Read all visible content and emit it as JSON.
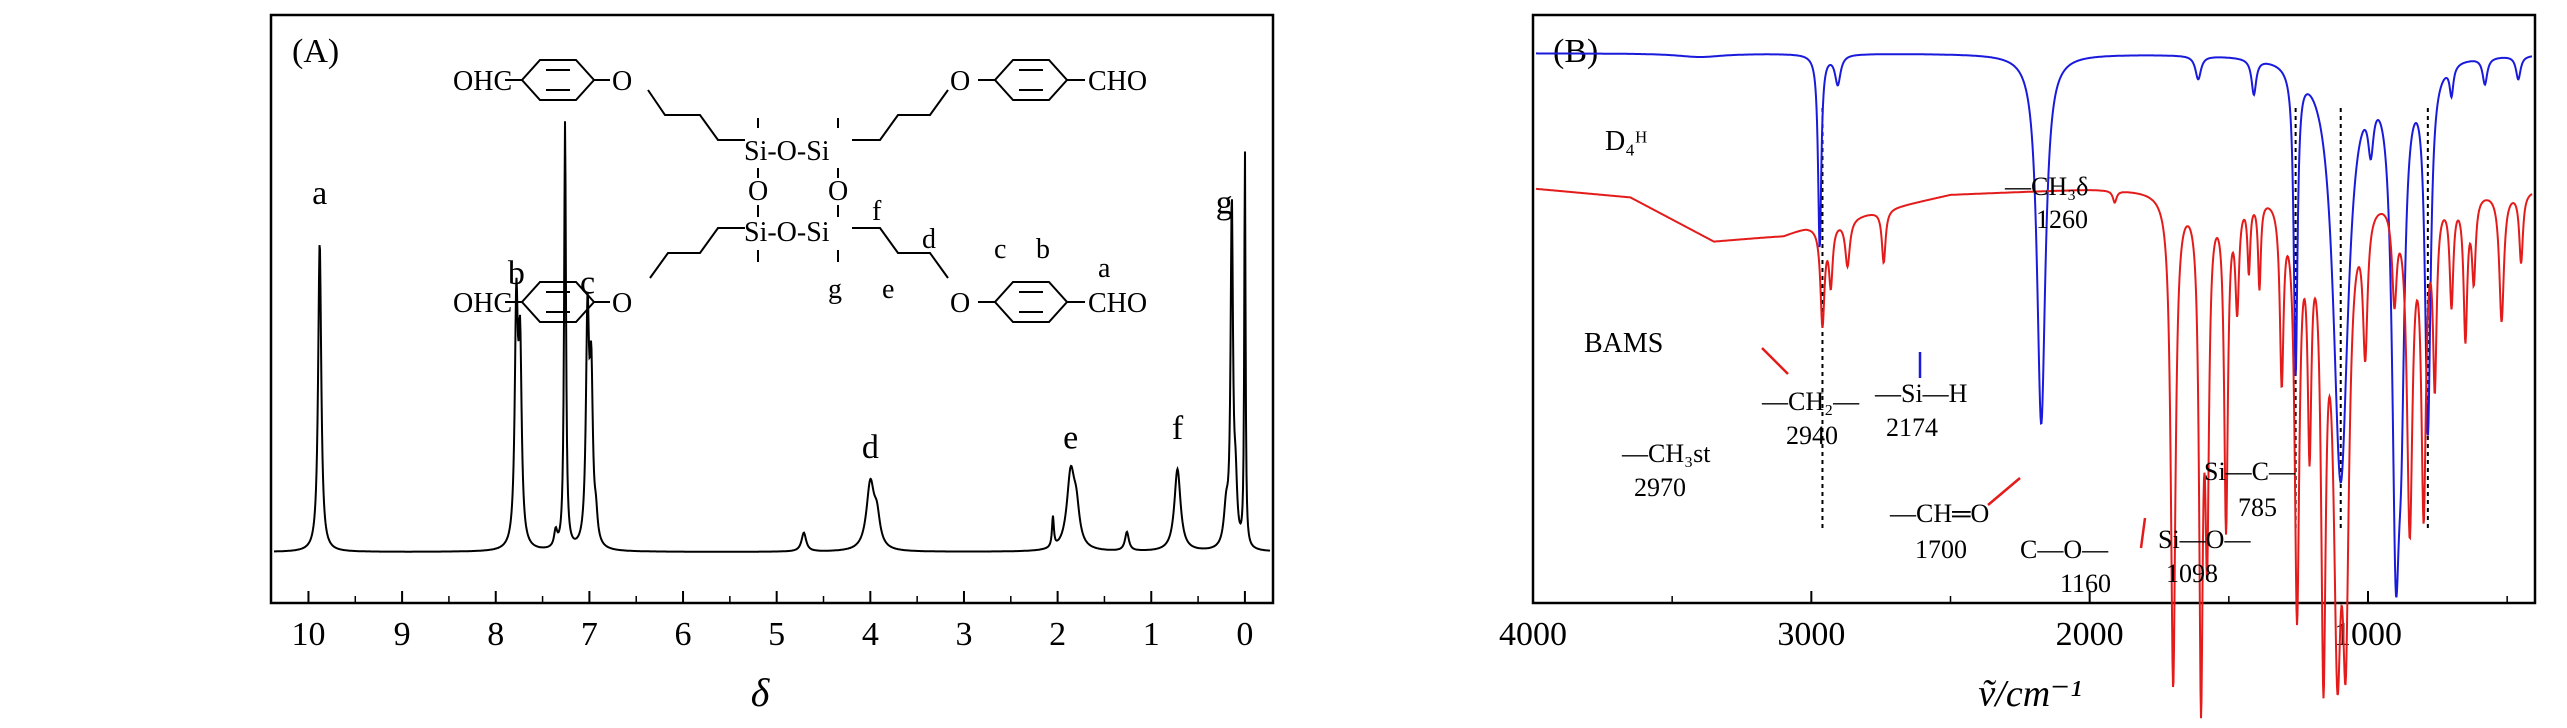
{
  "chart_data": [
    {
      "panel": "(A)",
      "type": "line",
      "title": "",
      "xlabel": "δ",
      "ylabel": "",
      "xlim": [
        10.4,
        -0.3
      ],
      "x_reversed": true,
      "x_ticks": [
        10,
        9,
        8,
        7,
        6,
        5,
        4,
        3,
        2,
        1,
        0
      ],
      "grid": false,
      "series": [
        {
          "color": "#000000",
          "peaks": [
            {
              "x": 9.88,
              "height": 0.66,
              "width": 0.02
            },
            {
              "x": 7.78,
              "height": 0.5,
              "width": 0.02
            },
            {
              "x": 7.74,
              "height": 0.4,
              "width": 0.02
            },
            {
              "x": 7.36,
              "height": 0.035,
              "width": 0.02
            },
            {
              "x": 7.26,
              "height": 0.91,
              "width": 0.012
            },
            {
              "x": 7.02,
              "height": 0.48,
              "width": 0.02
            },
            {
              "x": 6.98,
              "height": 0.34,
              "width": 0.02
            },
            {
              "x": 6.93,
              "height": 0.05,
              "width": 0.02
            },
            {
              "x": 4.71,
              "height": 0.04,
              "width": 0.03
            },
            {
              "x": 4.0,
              "height": 0.14,
              "width": 0.05
            },
            {
              "x": 3.93,
              "height": 0.06,
              "width": 0.04
            },
            {
              "x": 2.05,
              "height": 0.065,
              "width": 0.012
            },
            {
              "x": 1.86,
              "height": 0.16,
              "width": 0.05
            },
            {
              "x": 1.8,
              "height": 0.07,
              "width": 0.04
            },
            {
              "x": 1.26,
              "height": 0.04,
              "width": 0.025
            },
            {
              "x": 0.72,
              "height": 0.175,
              "width": 0.04
            },
            {
              "x": 0.2,
              "height": 0.08,
              "width": 0.03
            },
            {
              "x": 0.14,
              "height": 0.72,
              "width": 0.015
            },
            {
              "x": 0.1,
              "height": 0.12,
              "width": 0.02
            },
            {
              "x": 0.0,
              "height": 0.85,
              "width": 0.008
            }
          ]
        }
      ],
      "peak_labels": [
        {
          "text": "a",
          "x": 9.88,
          "y": 0.74
        },
        {
          "text": "b",
          "x": 7.78,
          "y": 0.57
        },
        {
          "text": "c",
          "x": 7.02,
          "y": 0.55
        },
        {
          "text": "d",
          "x": 4.0,
          "y": 0.2
        },
        {
          "text": "e",
          "x": 1.86,
          "y": 0.22
        },
        {
          "text": "f",
          "x": 0.72,
          "y": 0.24
        },
        {
          "text": "g",
          "x": 0.22,
          "y": 0.72
        }
      ],
      "structure_labels": {
        "cho_left": "OHC",
        "cho_right": "CHO",
        "o": "O",
        "si_o_si": "Si-O-Si",
        "o_vertical": "O",
        "a": "a",
        "b": "b",
        "c": "c",
        "d": "d",
        "e": "e",
        "f": "f",
        "g": "g"
      }
    },
    {
      "panel": "(B)",
      "type": "line",
      "title": "",
      "xlabel": "ṽ/cm⁻¹",
      "ylabel": "",
      "xlim": [
        4000,
        400
      ],
      "x_reversed": true,
      "x_ticks": [
        4000,
        3000,
        2000,
        1000
      ],
      "grid": false,
      "reference_lines": [
        2960,
        1260,
        1098,
        785
      ],
      "series": [
        {
          "name": "D₄ᴴ",
          "color": "#1a1adc",
          "baseline": 0.935,
          "slope": [],
          "bands": [
            {
              "x": 3400,
              "depth": 0.006,
              "width": 100
            },
            {
              "x": 2970,
              "depth": 0.33,
              "width": 7
            },
            {
              "x": 2905,
              "depth": 0.05,
              "width": 12
            },
            {
              "x": 2174,
              "depth": 0.63,
              "width": 18
            },
            {
              "x": 1610,
              "depth": 0.04,
              "width": 12
            },
            {
              "x": 1410,
              "depth": 0.06,
              "width": 10
            },
            {
              "x": 1260,
              "depth": 0.52,
              "width": 8
            },
            {
              "x": 1098,
              "depth": 0.72,
              "width": 32
            },
            {
              "x": 990,
              "depth": 0.09,
              "width": 12
            },
            {
              "x": 900,
              "depth": 0.76,
              "width": 16
            },
            {
              "x": 880,
              "depth": 0.4,
              "width": 14
            },
            {
              "x": 785,
              "depth": 0.62,
              "width": 12
            },
            {
              "x": 700,
              "depth": 0.05,
              "width": 8
            },
            {
              "x": 580,
              "depth": 0.045,
              "width": 10
            },
            {
              "x": 460,
              "depth": 0.04,
              "width": 10
            }
          ]
        },
        {
          "name": "BAMS",
          "color": "#e41b1b",
          "baseline": 0.705,
          "slope": [
            [
              4000,
              0
            ],
            [
              3650,
              -0.015
            ],
            [
              3350,
              -0.09
            ],
            [
              3100,
              -0.08
            ],
            [
              3020,
              -0.065
            ],
            [
              2500,
              -0.01
            ],
            [
              2000,
              0
            ],
            [
              400,
              0
            ]
          ],
          "bands": [
            {
              "x": 2960,
              "depth": 0.17,
              "width": 9
            },
            {
              "x": 2930,
              "depth": 0.1,
              "width": 8
            },
            {
              "x": 2870,
              "depth": 0.08,
              "width": 10
            },
            {
              "x": 2740,
              "depth": 0.09,
              "width": 8
            },
            {
              "x": 1910,
              "depth": 0.02,
              "width": 8
            },
            {
              "x": 1700,
              "depth": 0.84,
              "width": 10
            },
            {
              "x": 1600,
              "depth": 0.82,
              "width": 8
            },
            {
              "x": 1578,
              "depth": 0.55,
              "width": 8
            },
            {
              "x": 1510,
              "depth": 0.56,
              "width": 8
            },
            {
              "x": 1470,
              "depth": 0.18,
              "width": 8
            },
            {
              "x": 1428,
              "depth": 0.12,
              "width": 6
            },
            {
              "x": 1390,
              "depth": 0.15,
              "width": 6
            },
            {
              "x": 1310,
              "depth": 0.3,
              "width": 8
            },
            {
              "x": 1255,
              "depth": 0.7,
              "width": 10
            },
            {
              "x": 1210,
              "depth": 0.38,
              "width": 8
            },
            {
              "x": 1160,
              "depth": 0.76,
              "width": 10
            },
            {
              "x": 1110,
              "depth": 0.7,
              "width": 16
            },
            {
              "x": 1080,
              "depth": 0.66,
              "width": 14
            },
            {
              "x": 1010,
              "depth": 0.24,
              "width": 10
            },
            {
              "x": 905,
              "depth": 0.16,
              "width": 10
            },
            {
              "x": 850,
              "depth": 0.56,
              "width": 12
            },
            {
              "x": 800,
              "depth": 0.52,
              "width": 10
            },
            {
              "x": 760,
              "depth": 0.3,
              "width": 8
            },
            {
              "x": 700,
              "depth": 0.18,
              "width": 8
            },
            {
              "x": 650,
              "depth": 0.24,
              "width": 8
            },
            {
              "x": 620,
              "depth": 0.14,
              "width": 8
            },
            {
              "x": 520,
              "depth": 0.22,
              "width": 10
            },
            {
              "x": 450,
              "depth": 0.12,
              "width": 8
            }
          ]
        }
      ],
      "annotations": [
        {
          "text": "—CH₃δ",
          "sub": "1260"
        },
        {
          "text": "—CH₂—",
          "sub": "2940"
        },
        {
          "text": "—Si—H",
          "sub": "2174"
        },
        {
          "text": "—CH₃st",
          "sub": "2970"
        },
        {
          "text": "—CH═O",
          "sub": "1700"
        },
        {
          "text": "C—O—",
          "sub": "1160"
        },
        {
          "text": "Si—O—",
          "sub": "1098"
        },
        {
          "text": "Si—C—",
          "sub": "785"
        }
      ]
    }
  ]
}
